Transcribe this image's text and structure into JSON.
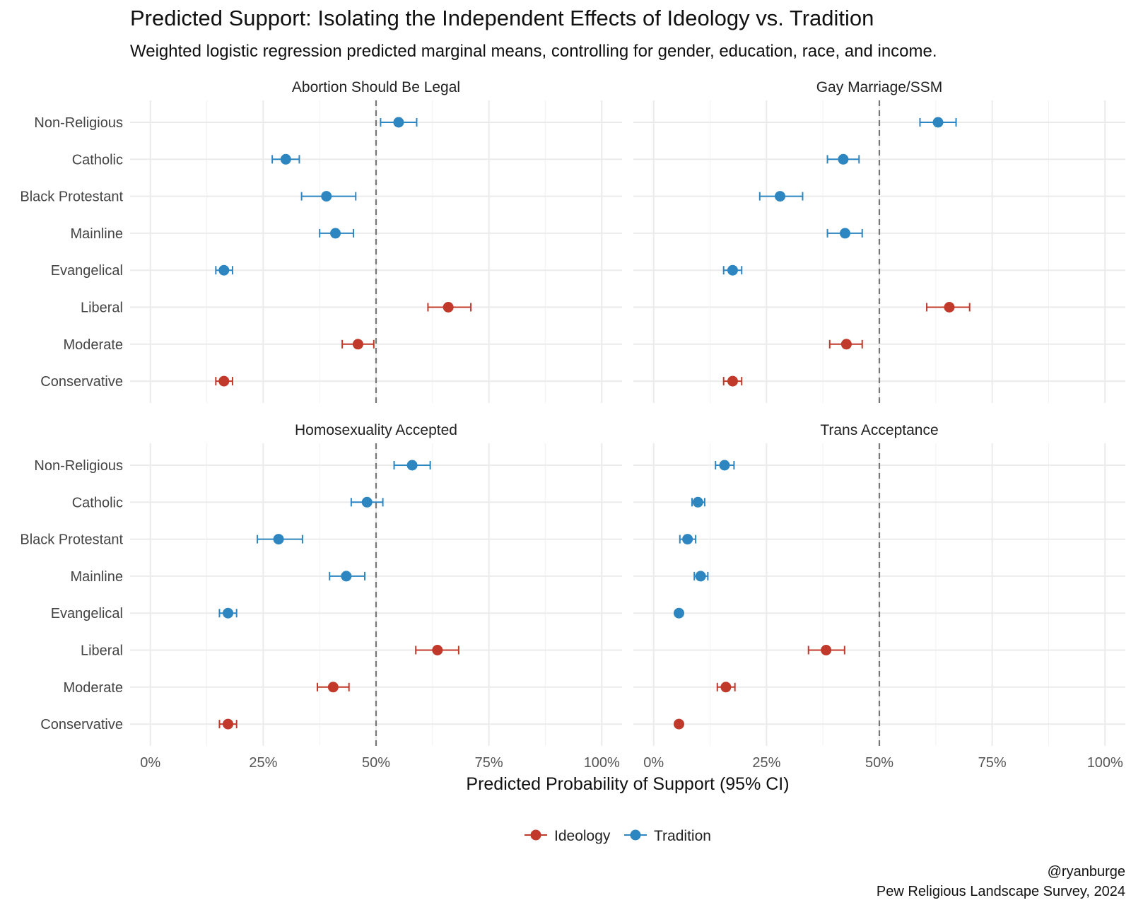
{
  "chart_data": {
    "type": "scatter",
    "subtype": "dot-and-errorbar faceted",
    "title": "Predicted Support: Isolating the Independent Effects of Ideology vs. Tradition",
    "subtitle": "Weighted logistic regression predicted marginal means, controlling for gender, education, race, and income.",
    "xlabel": "Predicted Probability of Support (95% CI)",
    "xlim": [
      0,
      1
    ],
    "x_ticks": [
      "0%",
      "25%",
      "50%",
      "75%",
      "100%"
    ],
    "reference_line": 0.5,
    "categories": [
      "Non-Religious",
      "Catholic",
      "Black Protestant",
      "Mainline",
      "Evangelical",
      "Liberal",
      "Moderate",
      "Conservative"
    ],
    "groups": {
      "Non-Religious": "Tradition",
      "Catholic": "Tradition",
      "Black Protestant": "Tradition",
      "Mainline": "Tradition",
      "Evangelical": "Tradition",
      "Liberal": "Ideology",
      "Moderate": "Ideology",
      "Conservative": "Ideology"
    },
    "legend": [
      {
        "name": "Ideology",
        "color": "#C0392B"
      },
      {
        "name": "Tradition",
        "color": "#2E86C1"
      }
    ],
    "legend_position": "bottom",
    "facets": [
      {
        "title": "Abortion Should Be Legal",
        "points": [
          {
            "label": "Non-Religious",
            "value": 0.55,
            "low": 0.51,
            "high": 0.59
          },
          {
            "label": "Catholic",
            "value": 0.3,
            "low": 0.27,
            "high": 0.33
          },
          {
            "label": "Black Protestant",
            "value": 0.39,
            "low": 0.335,
            "high": 0.455
          },
          {
            "label": "Mainline",
            "value": 0.41,
            "low": 0.375,
            "high": 0.45
          },
          {
            "label": "Evangelical",
            "value": 0.163,
            "low": 0.145,
            "high": 0.182
          },
          {
            "label": "Liberal",
            "value": 0.66,
            "low": 0.615,
            "high": 0.71
          },
          {
            "label": "Moderate",
            "value": 0.46,
            "low": 0.425,
            "high": 0.495
          },
          {
            "label": "Conservative",
            "value": 0.163,
            "low": 0.145,
            "high": 0.182
          }
        ]
      },
      {
        "title": "Gay Marriage/SSM",
        "points": [
          {
            "label": "Non-Religious",
            "value": 0.63,
            "low": 0.59,
            "high": 0.67
          },
          {
            "label": "Catholic",
            "value": 0.42,
            "low": 0.385,
            "high": 0.455
          },
          {
            "label": "Black Protestant",
            "value": 0.28,
            "low": 0.235,
            "high": 0.33
          },
          {
            "label": "Mainline",
            "value": 0.424,
            "low": 0.385,
            "high": 0.462
          },
          {
            "label": "Evangelical",
            "value": 0.175,
            "low": 0.155,
            "high": 0.195
          },
          {
            "label": "Liberal",
            "value": 0.655,
            "low": 0.605,
            "high": 0.7
          },
          {
            "label": "Moderate",
            "value": 0.427,
            "low": 0.39,
            "high": 0.462
          },
          {
            "label": "Conservative",
            "value": 0.175,
            "low": 0.155,
            "high": 0.195
          }
        ]
      },
      {
        "title": "Homosexuality Accepted",
        "points": [
          {
            "label": "Non-Religious",
            "value": 0.58,
            "low": 0.54,
            "high": 0.62
          },
          {
            "label": "Catholic",
            "value": 0.48,
            "low": 0.445,
            "high": 0.515
          },
          {
            "label": "Black Protestant",
            "value": 0.284,
            "low": 0.237,
            "high": 0.337
          },
          {
            "label": "Mainline",
            "value": 0.434,
            "low": 0.397,
            "high": 0.475
          },
          {
            "label": "Evangelical",
            "value": 0.172,
            "low": 0.153,
            "high": 0.191
          },
          {
            "label": "Liberal",
            "value": 0.636,
            "low": 0.588,
            "high": 0.683
          },
          {
            "label": "Moderate",
            "value": 0.405,
            "low": 0.37,
            "high": 0.44
          },
          {
            "label": "Conservative",
            "value": 0.172,
            "low": 0.153,
            "high": 0.191
          }
        ]
      },
      {
        "title": "Trans Acceptance",
        "points": [
          {
            "label": "Non-Religious",
            "value": 0.157,
            "low": 0.137,
            "high": 0.178
          },
          {
            "label": "Catholic",
            "value": 0.098,
            "low": 0.085,
            "high": 0.113
          },
          {
            "label": "Black Protestant",
            "value": 0.075,
            "low": 0.058,
            "high": 0.093
          },
          {
            "label": "Mainline",
            "value": 0.104,
            "low": 0.09,
            "high": 0.12
          },
          {
            "label": "Evangelical",
            "value": 0.056,
            "low": 0.056,
            "high": 0.056
          },
          {
            "label": "Liberal",
            "value": 0.382,
            "low": 0.343,
            "high": 0.423
          },
          {
            "label": "Moderate",
            "value": 0.16,
            "low": 0.141,
            "high": 0.18
          },
          {
            "label": "Conservative",
            "value": 0.056,
            "low": 0.056,
            "high": 0.056
          }
        ]
      }
    ],
    "caption_lines": [
      "@ryanburge",
      "Pew Religious Landscape Survey, 2024"
    ]
  }
}
